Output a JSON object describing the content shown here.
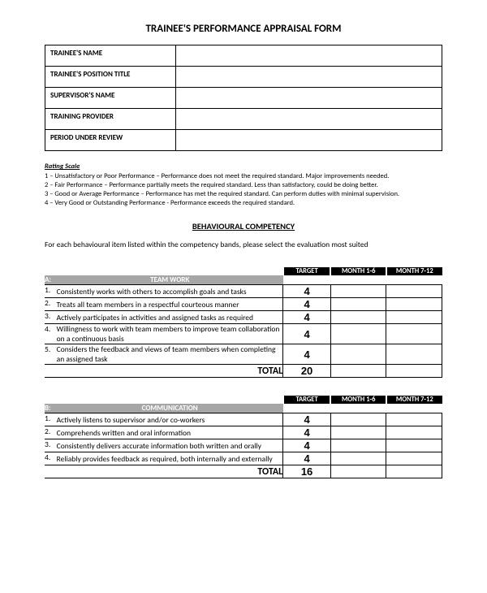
{
  "title": "TRAINEE'S PERFORMANCE APPRAISAL FORM",
  "info_rows": [
    {
      "label": "TRAINEE'S NAME",
      "value": ""
    },
    {
      "label": "TRAINEE'S POSITION TITLE",
      "value": ""
    },
    {
      "label": "SUPERVISOR'S NAME",
      "value": ""
    },
    {
      "label": "TRAINING PROVIDER",
      "value": ""
    },
    {
      "label": "PERIOD UNDER REVIEW",
      "value": ""
    }
  ],
  "rating": {
    "heading": "Rating Scale",
    "lines": [
      "1 – Unsatisfactory or Poor Performance – Performance does not meet the required standard. Major improvements needed.",
      "2 – Fair Performance – Performance partially meets the required standard. Less than satisfactory, could be doing better.",
      "3 – Good or Average Performance – Performance has met the required standard. Can perform duties with minimal supervision.",
      "4 – Very Good or Outstanding Performance - Performance exceeds the required standard."
    ]
  },
  "section_title": "BEHAVIOURAL COMPETENCY",
  "intro": "For each behavioural item listed within the competency bands, please select the evaluation most suited",
  "headers": {
    "target": "TARGET",
    "m1": "MONTH 1-6",
    "m2": "MONTH 7-12",
    "total": "TOTAL"
  },
  "competencies": [
    {
      "letter": "A:",
      "name": "TEAM WORK",
      "items": [
        {
          "n": "1.",
          "text": "Consistently works with others to accomplish goals and tasks",
          "target": "4"
        },
        {
          "n": "2.",
          "text": "Treats all team members in a respectful courteous manner",
          "target": "4"
        },
        {
          "n": "3.",
          "text": "Actively participates in activities and assigned tasks as required",
          "target": "4"
        },
        {
          "n": "4.",
          "text": "Willingness to work with team members to improve team collaboration on a continuous basis",
          "target": "4"
        },
        {
          "n": "5.",
          "text": "Considers the feedback and views of team members when completing an assigned task",
          "target": "4"
        }
      ],
      "total": "20"
    },
    {
      "letter": "B:",
      "name": "COMMUNICATION",
      "items": [
        {
          "n": "1.",
          "text": "Actively listens to supervisor and/or co-workers",
          "target": "4"
        },
        {
          "n": "2.",
          "text": "Comprehends written and oral information",
          "target": "4"
        },
        {
          "n": "3.",
          "text": "Consistently delivers accurate information both written and orally",
          "target": "4"
        },
        {
          "n": "4.",
          "text": "Reliably provides feedback as required, both internally and externally",
          "target": "4"
        }
      ],
      "total": "16"
    }
  ],
  "colors": {
    "header_bg": "#000000",
    "header_fg": "#ffffff",
    "section_bg": "#a6a6a6",
    "border": "#000000",
    "background": "#ffffff"
  },
  "col_widths": {
    "num": "3%",
    "item": "57%",
    "target": "12%",
    "month": "14%"
  }
}
